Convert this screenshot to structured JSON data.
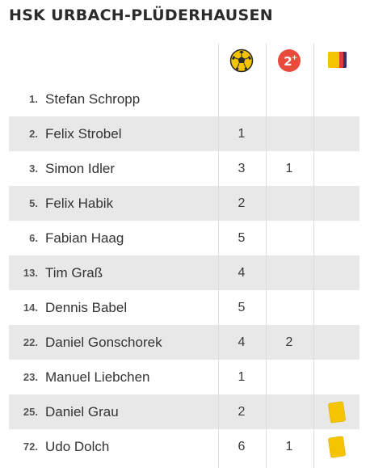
{
  "team": {
    "title": "HSK URBACH-PLÜDERHAUSEN"
  },
  "columns": {
    "goals_icon": "soccer-ball-icon",
    "assists_icon": "assist-icon",
    "assists_icon_text": "2",
    "cards_icon": "cards-icon"
  },
  "colors": {
    "ball_yellow": "#f5c400",
    "assist_red": "#e84b3c",
    "card_yellow": "#f5c400",
    "card_red": "#e0393e",
    "card_purple": "#3b2f6b",
    "row_shade": "#e8e8e8"
  },
  "players": [
    {
      "number": "1.",
      "name": "Stefan Schropp",
      "goals": "",
      "assists": "",
      "card": false
    },
    {
      "number": "2.",
      "name": "Felix Strobel",
      "goals": "1",
      "assists": "",
      "card": false
    },
    {
      "number": "3.",
      "name": "Simon Idler",
      "goals": "3",
      "assists": "1",
      "card": false
    },
    {
      "number": "5.",
      "name": "Felix Habik",
      "goals": "2",
      "assists": "",
      "card": false
    },
    {
      "number": "6.",
      "name": "Fabian Haag",
      "goals": "5",
      "assists": "",
      "card": false
    },
    {
      "number": "13.",
      "name": "Tim Graß",
      "goals": "4",
      "assists": "",
      "card": false
    },
    {
      "number": "14.",
      "name": "Dennis Babel",
      "goals": "5",
      "assists": "",
      "card": false
    },
    {
      "number": "22.",
      "name": "Daniel Gonschorek",
      "goals": "4",
      "assists": "2",
      "card": false
    },
    {
      "number": "23.",
      "name": "Manuel Liebchen",
      "goals": "1",
      "assists": "",
      "card": false
    },
    {
      "number": "25.",
      "name": "Daniel Grau",
      "goals": "2",
      "assists": "",
      "card": true
    },
    {
      "number": "72.",
      "name": "Udo Dolch",
      "goals": "6",
      "assists": "1",
      "card": true
    }
  ]
}
